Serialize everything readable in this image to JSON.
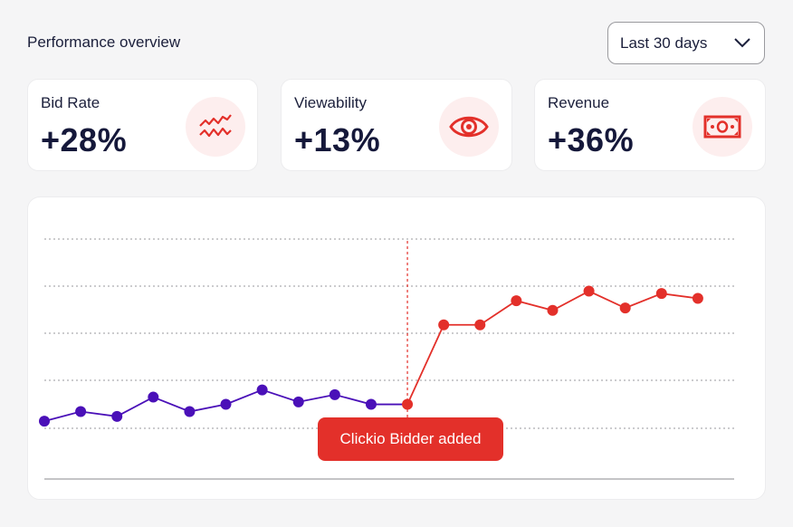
{
  "header": {
    "title": "Performance overview"
  },
  "range_select": {
    "selected": "Last 30 days"
  },
  "cards": [
    {
      "label": "Bid Rate",
      "value": "+28%",
      "icon": "trend-lines-icon"
    },
    {
      "label": "Viewability",
      "value": "+13%",
      "icon": "eye-icon"
    },
    {
      "label": "Revenue",
      "value": "+36%",
      "icon": "banknote-icon"
    }
  ],
  "colors": {
    "before": "#4a10b8",
    "after": "#e3302a",
    "accent_bg": "#fdeeee"
  },
  "chart_data": {
    "type": "line",
    "x": [
      1,
      2,
      3,
      4,
      5,
      6,
      7,
      8,
      9,
      10,
      11,
      12,
      13,
      14,
      15,
      16,
      17,
      18,
      19,
      20
    ],
    "series": [
      {
        "values": [
          22,
          24,
          23,
          27,
          24,
          25.5,
          28.5,
          26,
          27.5,
          25.5,
          25.5,
          null,
          null,
          null,
          null,
          null,
          null,
          null,
          null,
          null
        ]
      },
      {
        "values": [
          null,
          null,
          null,
          null,
          null,
          null,
          null,
          null,
          null,
          null,
          25.5,
          42,
          42,
          47,
          45,
          49,
          45.5,
          48.5,
          47.5,
          null
        ]
      }
    ],
    "annotation": {
      "label": "Clickio Bidder added",
      "x": 11
    },
    "grid": true
  }
}
